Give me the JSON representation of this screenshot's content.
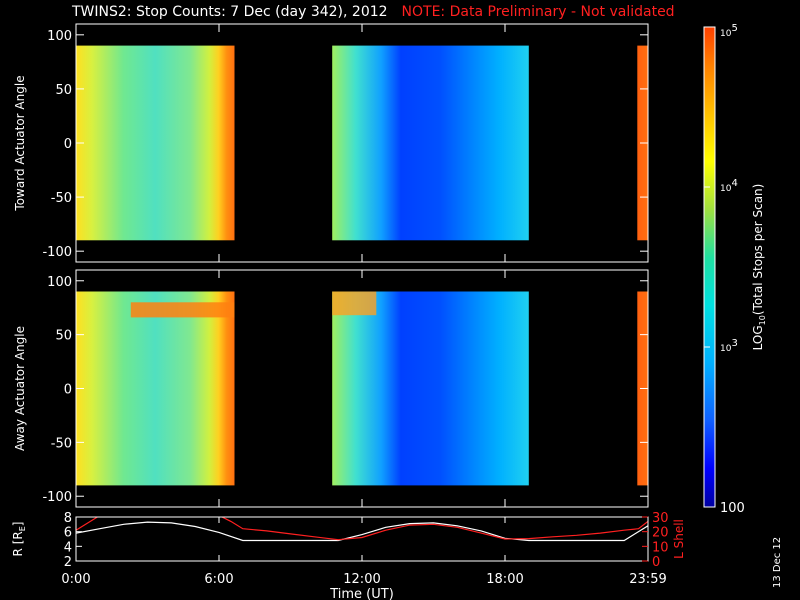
{
  "title": "TWINS2: Stop Counts:  7 Dec (day 342), 2012",
  "note": "NOTE: Data Preliminary - Not validated",
  "date_stamp": "13 Dec 12",
  "colors": {
    "background": "#000000",
    "axes": "#ffffff",
    "note": "#ff2020",
    "r_line": "#ffffff",
    "l_line": "#ff2020"
  },
  "chart_data": [
    {
      "type": "heatmap",
      "ylabel": "Toward Actuator Angle",
      "ylim": [
        -110,
        110
      ],
      "yticks": [
        100,
        50,
        0,
        -50,
        -100
      ],
      "x_ticks_hours": [
        0,
        6,
        12,
        18,
        24
      ],
      "colorscale": "log",
      "data_blocks_hours": [
        [
          0.0,
          6.65
        ],
        [
          10.75,
          19.0
        ],
        [
          23.55,
          24.0
        ]
      ],
      "angle_range": [
        -90,
        90
      ]
    },
    {
      "type": "heatmap",
      "ylabel": "Away Actuator Angle",
      "ylim": [
        -110,
        110
      ],
      "yticks": [
        100,
        50,
        0,
        -50,
        -100
      ],
      "x_ticks_hours": [
        0,
        6,
        12,
        18,
        24
      ],
      "colorscale": "log",
      "data_blocks_hours": [
        [
          0.0,
          6.65
        ],
        [
          10.75,
          19.0
        ],
        [
          23.55,
          24.0
        ]
      ],
      "angle_range": [
        -90,
        90
      ]
    },
    {
      "type": "line",
      "xlabel": "Time (UT)",
      "xtick_labels": [
        "0:00",
        "6:00",
        "12:00",
        "18:00",
        "23:59"
      ],
      "x_ticks_hours": [
        0,
        6,
        12,
        18,
        24
      ],
      "ylabel_left": "R [R",
      "ylabel_left_sub": "E",
      "ylabel_left_close": "]",
      "ylim_left": [
        2,
        8
      ],
      "yticks_left": [
        2,
        4,
        6,
        8
      ],
      "ylabel_right": "L Shell",
      "ylim_right": [
        0,
        30
      ],
      "yticks_right": [
        0,
        10,
        20,
        30
      ],
      "series": [
        {
          "axis": "left",
          "x": [
            0,
            1,
            2,
            3,
            4,
            5,
            6,
            7,
            8,
            9,
            10,
            11,
            12,
            13,
            14,
            15,
            16,
            17,
            18,
            19,
            20,
            21,
            22,
            23,
            24
          ],
          "values": [
            5.8,
            6.4,
            7.0,
            7.3,
            7.2,
            6.7,
            5.9,
            4.8,
            4.8,
            4.8,
            4.8,
            4.8,
            5.6,
            6.6,
            7.1,
            7.2,
            6.8,
            6.1,
            5.1,
            4.8,
            4.8,
            4.8,
            4.8,
            4.8,
            6.8
          ]
        },
        {
          "axis": "right",
          "x": [
            0,
            0.5,
            1,
            6,
            6.5,
            7,
            8,
            9,
            10,
            11,
            12,
            13,
            14,
            15,
            16,
            17,
            18,
            19,
            20,
            21,
            22,
            23,
            23.6,
            24
          ],
          "values": [
            21,
            26,
            31,
            31,
            27,
            22,
            20.5,
            18.5,
            16.5,
            14.5,
            16,
            21,
            24.5,
            25,
            23,
            19,
            15,
            15.3,
            16.5,
            17.5,
            19,
            21,
            22,
            27
          ]
        }
      ]
    }
  ],
  "colorbar": {
    "label_prefix": "LOG",
    "label_sub": "10",
    "label_suffix": "(Total Stops per Scan)",
    "tick_labels": [
      "10",
      "10",
      "10",
      "100"
    ],
    "tick_exponents": [
      "5",
      "4",
      "3",
      ""
    ],
    "range": [
      100,
      100000
    ],
    "scale": "log",
    "palette": [
      "#0000a0",
      "#0000ff",
      "#1060ff",
      "#00b0ff",
      "#00e0e0",
      "#20e0a0",
      "#a0e040",
      "#ffff00",
      "#ffc000",
      "#ff8000",
      "#ff4000"
    ]
  }
}
